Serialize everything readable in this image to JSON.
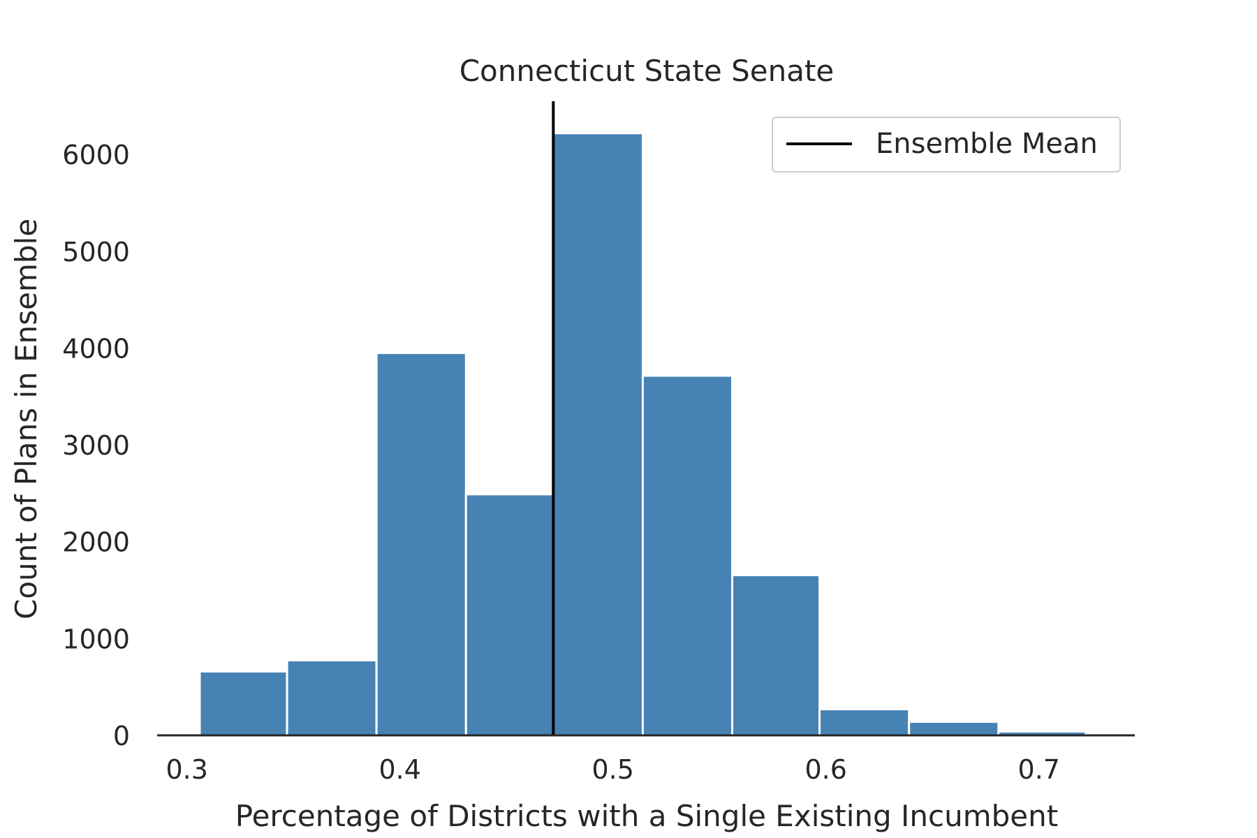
{
  "chart_data": {
    "type": "bar",
    "title": "Connecticut State Senate",
    "xlabel": "Percentage of Districts with a Single Existing Incumbent",
    "ylabel": "Count of Plans in Ensemble",
    "bins": [
      {
        "x0": 0.306,
        "x1": 0.347,
        "count": 660
      },
      {
        "x0": 0.347,
        "x1": 0.389,
        "count": 775
      },
      {
        "x0": 0.389,
        "x1": 0.431,
        "count": 3950
      },
      {
        "x0": 0.431,
        "x1": 0.472,
        "count": 2490
      },
      {
        "x0": 0.472,
        "x1": 0.514,
        "count": 6220
      },
      {
        "x0": 0.514,
        "x1": 0.556,
        "count": 3715
      },
      {
        "x0": 0.556,
        "x1": 0.597,
        "count": 1655
      },
      {
        "x0": 0.597,
        "x1": 0.639,
        "count": 270
      },
      {
        "x0": 0.639,
        "x1": 0.681,
        "count": 140
      },
      {
        "x0": 0.681,
        "x1": 0.722,
        "count": 40
      }
    ],
    "ensemble_mean": 0.472,
    "xlim": [
      0.286,
      0.745
    ],
    "ylim": [
      0,
      6550
    ],
    "xticks": [
      0.3,
      0.4,
      0.5,
      0.6,
      0.7
    ],
    "xtick_labels": [
      "0.3",
      "0.4",
      "0.5",
      "0.6",
      "0.7"
    ],
    "yticks": [
      0,
      1000,
      2000,
      3000,
      4000,
      5000,
      6000
    ],
    "ytick_labels": [
      "0",
      "1000",
      "2000",
      "3000",
      "4000",
      "5000",
      "6000"
    ],
    "legend": {
      "label": "Ensemble Mean",
      "placement": "top-right"
    },
    "grid": false,
    "colors": {
      "bar": "#4682b4",
      "mean_line": "#000000",
      "axis": "#262626",
      "legend_border": "#cccccc"
    }
  }
}
